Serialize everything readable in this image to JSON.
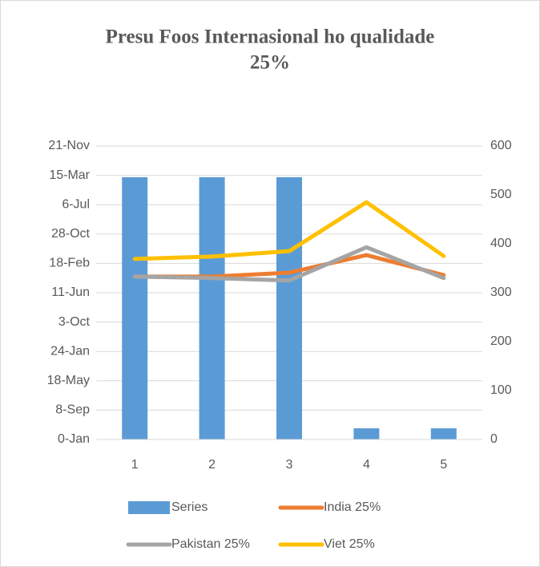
{
  "chart_data": {
    "type": "bar-line",
    "title": [
      "Presu Foos Internasional ho qualidade",
      "25%"
    ],
    "categories": [
      1,
      2,
      3,
      4,
      5
    ],
    "series": [
      {
        "name": "Series",
        "type": "bar",
        "color": "#5b9bd5",
        "axis": "y",
        "values": [
          2252,
          2252,
          2252,
          96,
          96
        ]
      },
      {
        "name": "India 25%",
        "type": "line",
        "color": "#ed7d31",
        "axis": "y2",
        "values": [
          333,
          333,
          341,
          377,
          336
        ]
      },
      {
        "name": "Pakistan 25%",
        "type": "line",
        "color": "#a5a5a5",
        "axis": "y2",
        "values": [
          333,
          330,
          325,
          393,
          330
        ]
      },
      {
        "name": "Viet 25%",
        "type": "line",
        "color": "#ffc000",
        "axis": "y2",
        "values": [
          369,
          374,
          385,
          485,
          375
        ]
      }
    ],
    "ylim": [
      0,
      2520
    ],
    "yticks": [
      {
        "value": 0,
        "label": "0-Jan"
      },
      {
        "value": 252,
        "label": "8-Sep"
      },
      {
        "value": 504,
        "label": "18-May"
      },
      {
        "value": 756,
        "label": "24-Jan"
      },
      {
        "value": 1008,
        "label": "3-Oct"
      },
      {
        "value": 1260,
        "label": "11-Jun"
      },
      {
        "value": 1512,
        "label": "18-Feb"
      },
      {
        "value": 1764,
        "label": "28-Oct"
      },
      {
        "value": 2016,
        "label": "6-Jul"
      },
      {
        "value": 2268,
        "label": "15-Mar"
      },
      {
        "value": 2520,
        "label": "21-Nov"
      }
    ],
    "y2lim": [
      0,
      600
    ],
    "y2ticks": [
      0,
      100,
      200,
      300,
      400,
      500,
      600
    ],
    "grid": true
  }
}
